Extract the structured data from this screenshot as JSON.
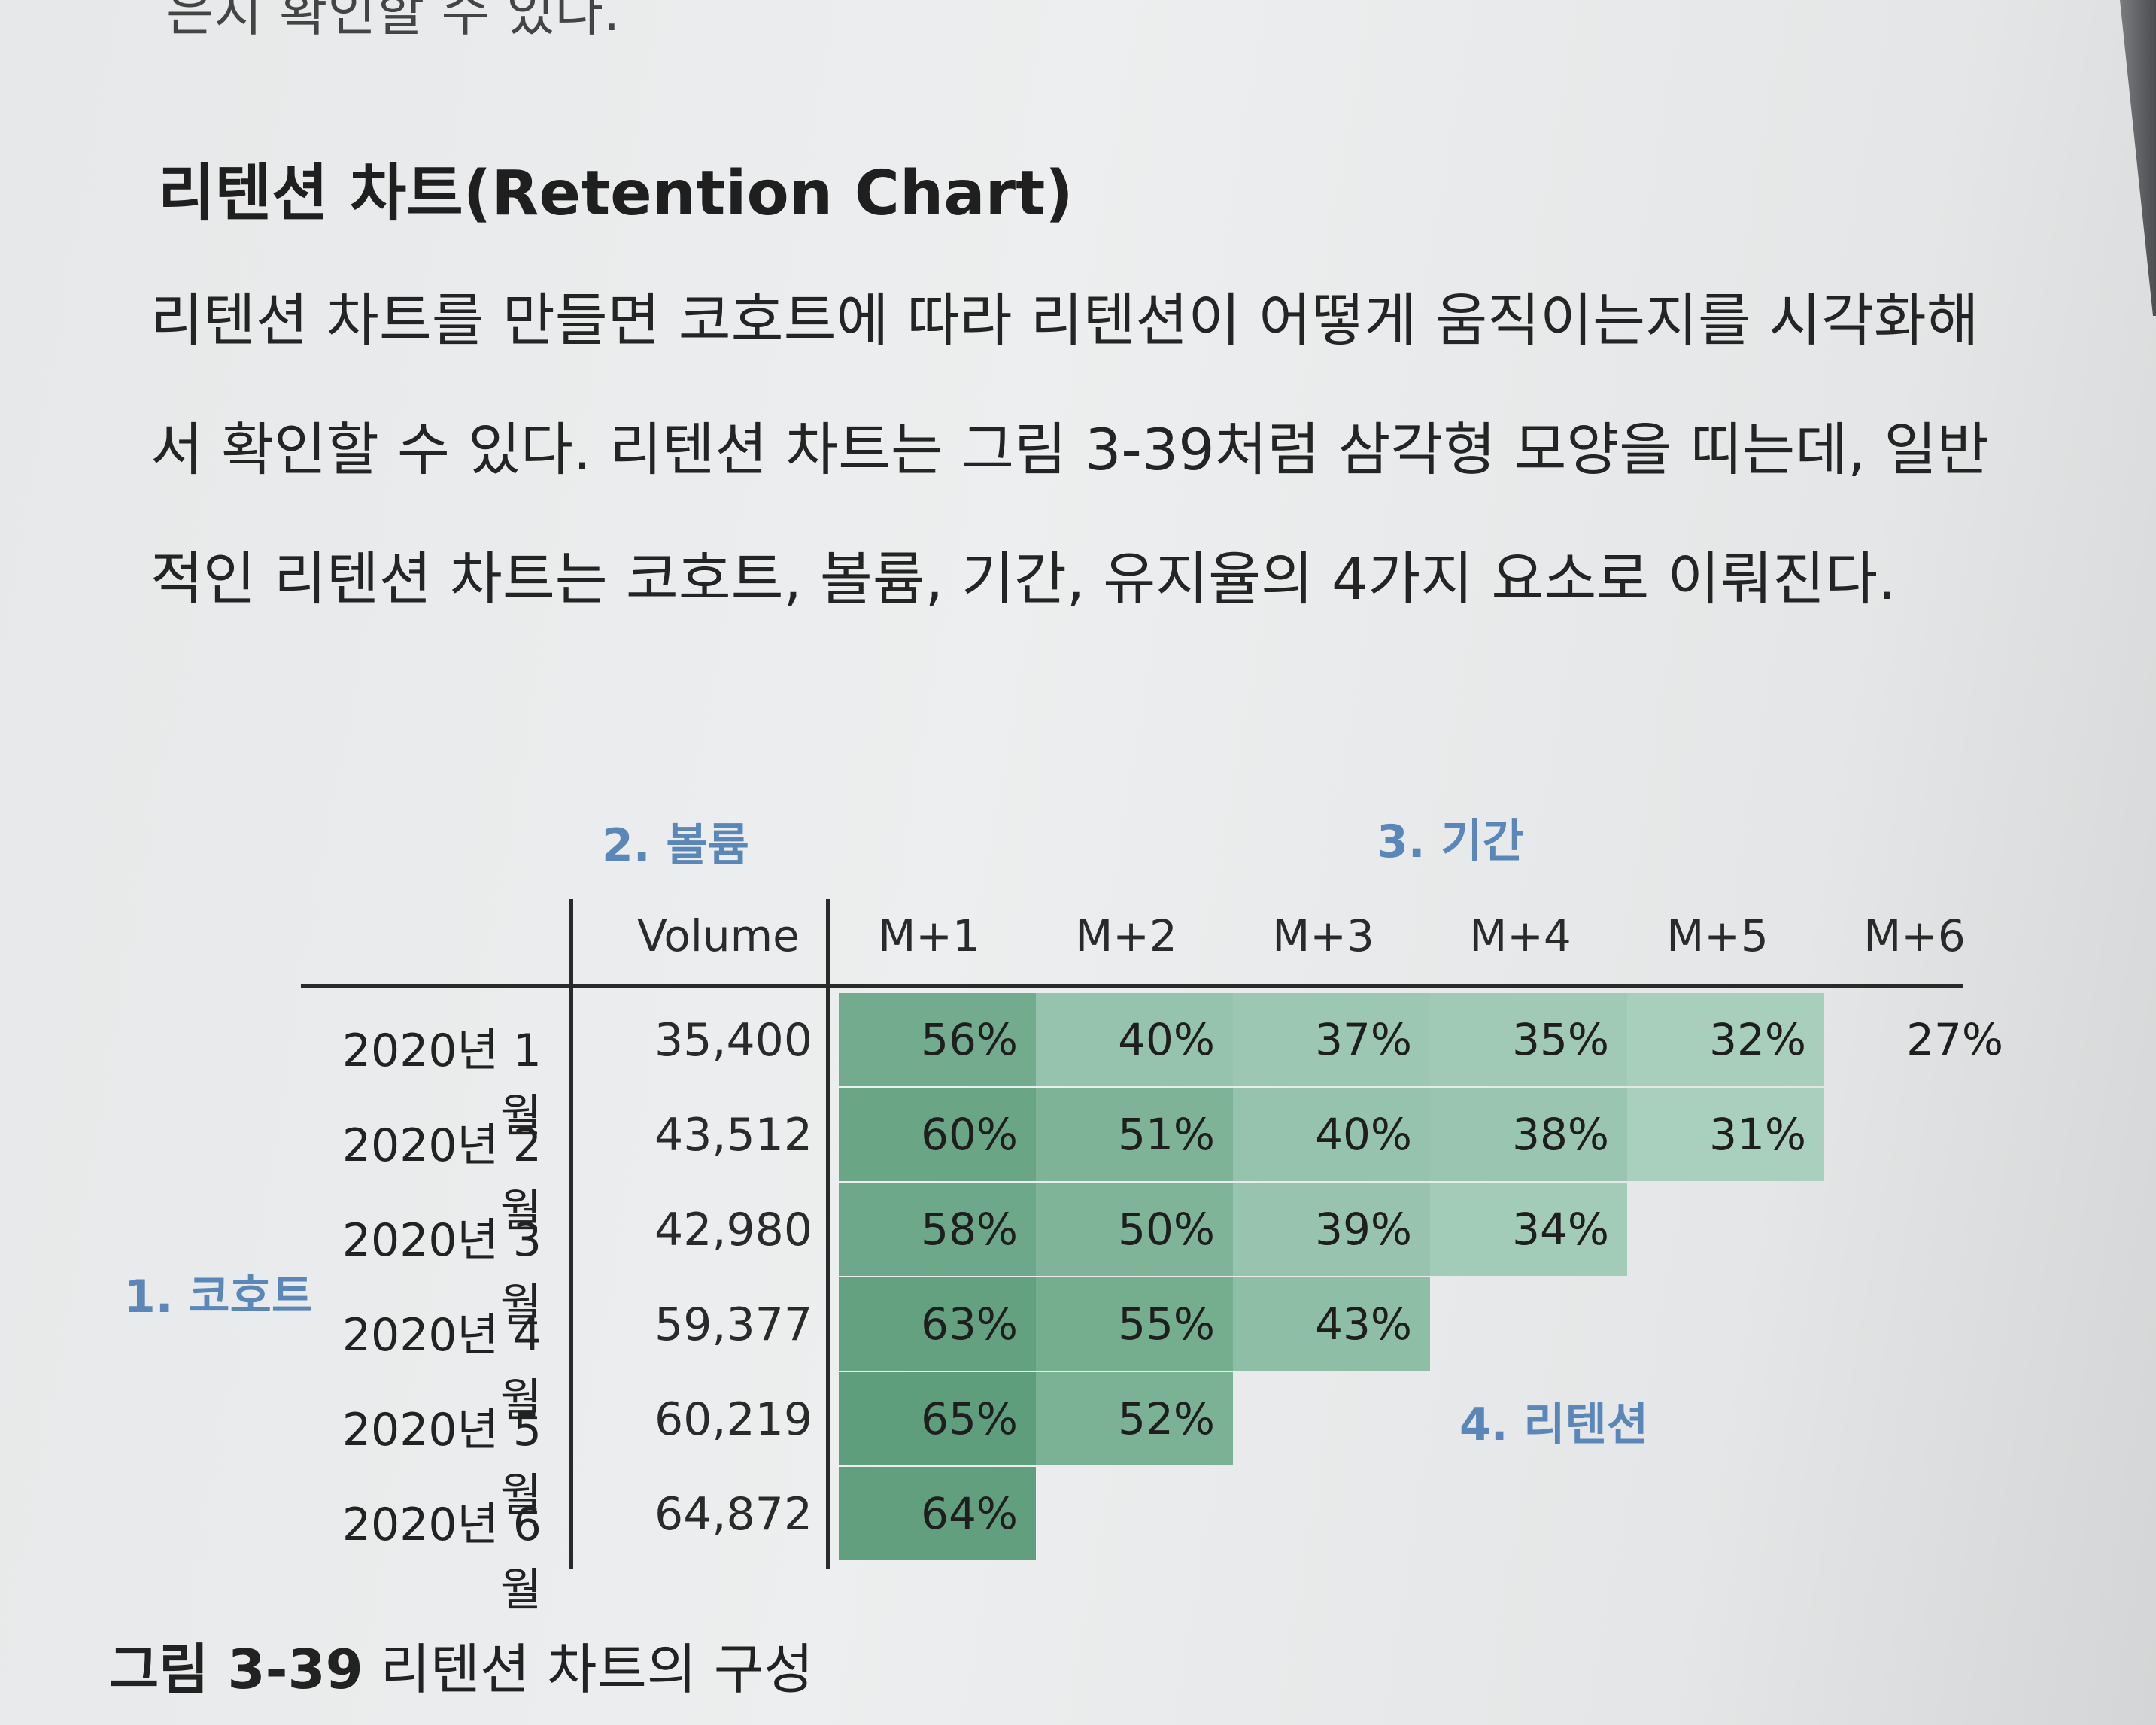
{
  "page": {
    "fragment_top": "은지 확인할 수 있다.",
    "heading": "리텐션 차트(Retention Chart)",
    "paragraph": "리텐션 차트를 만들면 코호트에 따라 리텐션이 어떻게 움직이는지를 시각화해서 확인할 수 있다. 리텐션 차트는 그림 3-39처럼 삼각형 모양을 띠는데, 일반적인 리텐션 차트는 코호트, 볼륨, 기간, 유지율의 4가지 요소로 이뤄진다.",
    "caption_number": "그림 3-39",
    "caption_text": "리텐션 차트의 구성"
  },
  "figure": {
    "annotations": {
      "volume": "2. 볼륨",
      "period": "3. 기간",
      "cohort": "1. 코호트",
      "retention": "4. 리텐션"
    },
    "volume_header": "Volume",
    "period_headers": [
      "M+1",
      "M+2",
      "M+3",
      "M+4",
      "M+5",
      "M+6"
    ],
    "rows": [
      {
        "cohort": "2020년 1월",
        "volume": "35,400",
        "cells": [
          "56%",
          "40%",
          "37%",
          "35%",
          "32%",
          "27%"
        ]
      },
      {
        "cohort": "2020년 2월",
        "volume": "43,512",
        "cells": [
          "60%",
          "51%",
          "40%",
          "38%",
          "31%"
        ]
      },
      {
        "cohort": "2020년 3월",
        "volume": "42,980",
        "cells": [
          "58%",
          "50%",
          "39%",
          "34%"
        ]
      },
      {
        "cohort": "2020년 4월",
        "volume": "59,377",
        "cells": [
          "63%",
          "55%",
          "43%"
        ]
      },
      {
        "cohort": "2020년 5월",
        "volume": "60,219",
        "cells": [
          "65%",
          "52%"
        ]
      },
      {
        "cohort": "2020년 6월",
        "volume": "64,872",
        "cells": [
          "64%"
        ]
      }
    ],
    "heat_colors": {
      "high": "#5f9e7c",
      "low": "#b2d6c6"
    }
  }
}
